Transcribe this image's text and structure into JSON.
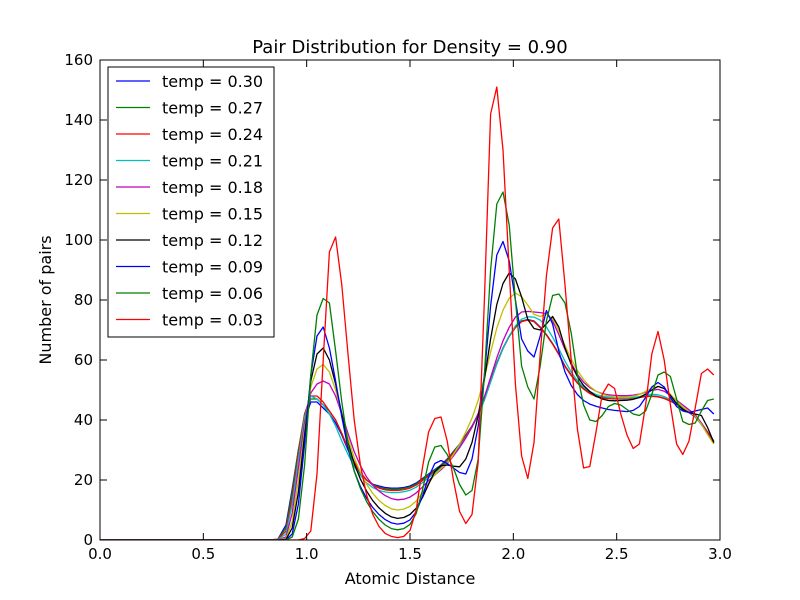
{
  "chart_data": {
    "type": "line",
    "title": "Pair Distribution for  Density = 0.90",
    "xlabel": "Atomic Distance",
    "ylabel": "Number of pairs",
    "xlim": [
      0.0,
      3.0
    ],
    "ylim": [
      0,
      160
    ],
    "xticks": [
      "0.0",
      "0.5",
      "1.0",
      "1.5",
      "2.0",
      "2.5",
      "3.0"
    ],
    "yticks": [
      "0",
      "20",
      "40",
      "60",
      "80",
      "100",
      "120",
      "140",
      "160"
    ],
    "grid": false,
    "legend_position": "top-left",
    "x": [
      0.0,
      0.1,
      0.2,
      0.3,
      0.4,
      0.5,
      0.6,
      0.7,
      0.8,
      0.86,
      0.9,
      0.93,
      0.96,
      0.99,
      1.02,
      1.05,
      1.08,
      1.11,
      1.14,
      1.17,
      1.2,
      1.23,
      1.26,
      1.29,
      1.32,
      1.35,
      1.38,
      1.41,
      1.44,
      1.47,
      1.5,
      1.53,
      1.56,
      1.59,
      1.62,
      1.65,
      1.68,
      1.71,
      1.74,
      1.77,
      1.8,
      1.83,
      1.86,
      1.89,
      1.92,
      1.95,
      1.98,
      2.01,
      2.04,
      2.07,
      2.1,
      2.13,
      2.16,
      2.19,
      2.22,
      2.25,
      2.28,
      2.31,
      2.34,
      2.37,
      2.4,
      2.43,
      2.46,
      2.49,
      2.52,
      2.55,
      2.58,
      2.61,
      2.64,
      2.67,
      2.7,
      2.73,
      2.76,
      2.79,
      2.82,
      2.85,
      2.88,
      2.91,
      2.94,
      2.97
    ],
    "series": [
      {
        "name": "temp = 0.30",
        "color": "#0000ff",
        "values": [
          0,
          0,
          0,
          0,
          0,
          0,
          0,
          0,
          0,
          0.2,
          5,
          17,
          30,
          40,
          46,
          46,
          44,
          42,
          39,
          35,
          30,
          26,
          22,
          20,
          18.6,
          18,
          17.5,
          17.3,
          17.3,
          17.5,
          18,
          19,
          20.5,
          22,
          23.5,
          25,
          27,
          29.5,
          32,
          35,
          38,
          42,
          47,
          53,
          59,
          64,
          68,
          71,
          73,
          73.5,
          73,
          71,
          68.5,
          65.5,
          62,
          58,
          55,
          52.5,
          50.5,
          49,
          48,
          47.5,
          47.3,
          47.2,
          47.2,
          47.3,
          47.5,
          47.7,
          48,
          48,
          47.8,
          47.2,
          46.3,
          45.2,
          44,
          42.5,
          41,
          38.5,
          35.5,
          32.5
        ]
      },
      {
        "name": "temp = 0.27",
        "color": "#008000",
        "values": [
          0,
          0,
          0,
          0,
          0,
          0,
          0,
          0,
          0,
          0.2,
          4,
          16,
          30,
          42,
          47,
          47,
          45,
          43,
          40,
          35.5,
          30.5,
          26,
          22.5,
          20,
          18.5,
          17.6,
          17.1,
          16.9,
          16.9,
          17.2,
          17.7,
          18.7,
          20.2,
          21.8,
          23.3,
          24.8,
          26.8,
          29.3,
          31.8,
          34.8,
          37.9,
          41.9,
          46.9,
          52.9,
          58.9,
          63.9,
          67.9,
          70.9,
          72.9,
          73.4,
          72.9,
          70.9,
          68.4,
          65.4,
          61.9,
          57.9,
          54.9,
          52.4,
          50.4,
          48.9,
          47.9,
          47.4,
          47.2,
          47.1,
          47.1,
          47.2,
          47.4,
          47.6,
          47.9,
          48,
          47.8,
          47.3,
          46.4,
          45.4,
          44.2,
          42.8,
          41.3,
          39,
          36,
          33
        ]
      },
      {
        "name": "temp = 0.24",
        "color": "#ff0000",
        "values": [
          0,
          0,
          0,
          0,
          0,
          0,
          0,
          0,
          0,
          0.2,
          3,
          14,
          29,
          42,
          48,
          48,
          46,
          43,
          40,
          35.5,
          30.5,
          26,
          22.5,
          20,
          18.3,
          17.3,
          16.7,
          16.5,
          16.5,
          16.8,
          17.3,
          18.3,
          19.8,
          21.4,
          22.9,
          24.4,
          26.5,
          29,
          31.6,
          34.6,
          37.8,
          41.8,
          46.8,
          52.8,
          58.8,
          63.8,
          67.8,
          70.8,
          72.8,
          73.3,
          72.8,
          70.8,
          68.3,
          65.3,
          61.8,
          57.8,
          54.8,
          52.3,
          50.3,
          48.8,
          47.8,
          47.3,
          47.1,
          47,
          47,
          47.1,
          47.3,
          47.5,
          47.8,
          47.9,
          47.7,
          47.2,
          46.3,
          45.3,
          44.1,
          42.7,
          41.2,
          38.9,
          35.9,
          32.9
        ]
      },
      {
        "name": "temp = 0.21",
        "color": "#00bfbf",
        "values": [
          0,
          0,
          0,
          0,
          0,
          0,
          0,
          0,
          0,
          0.1,
          2,
          12,
          27,
          41,
          48,
          47,
          45,
          42,
          38,
          33,
          28.5,
          24.5,
          21.5,
          19,
          17.5,
          16.5,
          16,
          15.8,
          15.8,
          16.1,
          16.6,
          17.6,
          19.1,
          20.8,
          22.4,
          24,
          26,
          28.5,
          31.2,
          34.2,
          37.6,
          41.6,
          46.6,
          52.6,
          58.6,
          63.8,
          68,
          71.4,
          73.6,
          74.4,
          74.3,
          73.3,
          71,
          67.6,
          63.8,
          59.6,
          56,
          53,
          51,
          49.5,
          48.5,
          47.9,
          47.6,
          47.4,
          47.3,
          47.3,
          47.5,
          47.8,
          48.3,
          48.6,
          48.4,
          47.8,
          46.8,
          45.6,
          44.3,
          42.8,
          41.2,
          38.6,
          35.4,
          32.2
        ]
      },
      {
        "name": "temp = 0.18",
        "color": "#bf00bf",
        "values": [
          0,
          0,
          0,
          0,
          0,
          0,
          0,
          0,
          0,
          0,
          1,
          9,
          24,
          39,
          49,
          52,
          53,
          52,
          48,
          42,
          35.5,
          29.5,
          24.8,
          21,
          18.3,
          16.3,
          14.8,
          13.8,
          13.4,
          13.6,
          14.3,
          15.7,
          17.6,
          19.8,
          21.7,
          23.4,
          25.4,
          28,
          30.8,
          34,
          37.6,
          42.1,
          47.7,
          54.2,
          60.7,
          66.4,
          70.9,
          74.3,
          76,
          76.2,
          76,
          75.8,
          75.5,
          73,
          68.5,
          63.5,
          59,
          55.2,
          52.6,
          50.8,
          49.6,
          48.8,
          48.4,
          48.2,
          48.1,
          48.1,
          48.3,
          48.6,
          49.2,
          49.9,
          50.2,
          49.6,
          48.2,
          46.6,
          45,
          43.4,
          41.8,
          39,
          35.5,
          32.3
        ]
      },
      {
        "name": "temp = 0.15",
        "color": "#bfbf00",
        "values": [
          0,
          0,
          0,
          0,
          0,
          0,
          0,
          0,
          0,
          0,
          0.5,
          6,
          20,
          37,
          51,
          57,
          58.5,
          56,
          50,
          42,
          34,
          27.5,
          22.5,
          18.6,
          15.5,
          13.2,
          11.5,
          10.4,
          10,
          10.3,
          11.2,
          13,
          15.8,
          19,
          21.8,
          23.8,
          25.5,
          28.5,
          32,
          36,
          40.6,
          46.6,
          54.1,
          62.6,
          70.6,
          76.6,
          80.6,
          82.3,
          81.1,
          78.3,
          75.2,
          74.5,
          75.3,
          73.8,
          69.8,
          64.8,
          60.3,
          56.5,
          53.5,
          51.2,
          49.6,
          48.6,
          48,
          47.7,
          47.6,
          47.6,
          47.9,
          48.5,
          49.5,
          50.6,
          51.2,
          50.5,
          48.6,
          46.4,
          44.4,
          42.8,
          41.3,
          38.6,
          35.1,
          32
        ]
      },
      {
        "name": "temp = 0.12",
        "color": "#000000",
        "values": [
          0,
          0,
          0,
          0,
          0,
          0,
          0,
          0,
          0,
          0,
          0.2,
          4,
          16,
          35,
          53,
          62,
          64,
          60,
          52,
          42,
          32.5,
          25.5,
          20.3,
          16.3,
          13.1,
          10.7,
          8.9,
          7.7,
          7.2,
          7.5,
          8.5,
          10.6,
          14.1,
          18.6,
          22.8,
          24.8,
          25,
          24.6,
          24.4,
          27,
          32.5,
          41.5,
          53.5,
          67,
          78.5,
          85.5,
          89,
          87,
          81,
          73.5,
          70.5,
          70,
          72,
          74.5,
          71,
          64,
          58.5,
          54.5,
          51.5,
          49.5,
          48,
          47,
          46.5,
          46.4,
          46.5,
          46.6,
          46.9,
          47.5,
          48.6,
          50,
          51.2,
          50.5,
          48.2,
          45.5,
          43.5,
          42.5,
          42,
          41.5,
          37.5,
          32.5
        ]
      },
      {
        "name": "temp = 0.09",
        "color": "#0000ff",
        "values": [
          0,
          0,
          0,
          0,
          0,
          0,
          0,
          0,
          0,
          0,
          0.1,
          2,
          12,
          32,
          55,
          68,
          71,
          64,
          53,
          41,
          30.5,
          23,
          17.8,
          13.9,
          10.8,
          8.5,
          6.8,
          5.7,
          5.3,
          5.6,
          6.7,
          9.4,
          14.5,
          21,
          25.5,
          26.5,
          25.5,
          24,
          22.5,
          22,
          27,
          38,
          55,
          78,
          95,
          99.5,
          93,
          80,
          67,
          63,
          61,
          68,
          76.5,
          72,
          63,
          56,
          51.5,
          48.5,
          46.5,
          45.3,
          44.6,
          44,
          43.5,
          43.2,
          43,
          42.8,
          43.2,
          44.5,
          47.5,
          51,
          52.5,
          51,
          47.5,
          44.5,
          43,
          42.5,
          43,
          43.5,
          44,
          42
        ]
      },
      {
        "name": "temp = 0.06",
        "color": "#008000",
        "values": [
          0,
          0,
          0,
          0,
          0,
          0,
          0,
          0,
          0,
          0,
          0,
          1,
          7,
          25,
          55,
          75,
          80.5,
          79,
          63,
          46,
          32,
          23,
          17.2,
          12.8,
          9.4,
          6.9,
          5,
          3.8,
          3.4,
          3.8,
          5.2,
          8.8,
          16.5,
          26,
          31,
          31.5,
          28.5,
          24,
          18.5,
          15,
          16.5,
          27,
          55,
          90,
          112,
          116,
          105,
          80,
          58,
          51,
          47,
          58,
          73,
          81.5,
          82,
          79,
          69,
          55,
          45,
          40,
          39.5,
          41.5,
          44.5,
          45.5,
          45,
          43.5,
          42,
          41.5,
          43,
          48.5,
          55,
          56,
          54.5,
          47,
          39.5,
          38.5,
          39,
          43,
          46.5,
          47
        ]
      },
      {
        "name": "temp = 0.03",
        "color": "#ff0000",
        "values": [
          0,
          0,
          0,
          0,
          0,
          0,
          0,
          0,
          0,
          0,
          0,
          0,
          0,
          0.5,
          3,
          22,
          60,
          96,
          101,
          85,
          62,
          40,
          25,
          15,
          8.5,
          4.5,
          2.2,
          1.2,
          0.8,
          1.2,
          3.2,
          10,
          24,
          36,
          40.5,
          41,
          33,
          20,
          9.5,
          5.5,
          8.5,
          26,
          80,
          142,
          151,
          130,
          90,
          52,
          28,
          20.5,
          32.5,
          62,
          88,
          104,
          107,
          85,
          60,
          37,
          24,
          24.5,
          36,
          48.5,
          52,
          50.5,
          42,
          35,
          30.5,
          32,
          45,
          62,
          69.5,
          60,
          45,
          32,
          28.5,
          33,
          44,
          55.5,
          57,
          55
        ]
      }
    ]
  }
}
